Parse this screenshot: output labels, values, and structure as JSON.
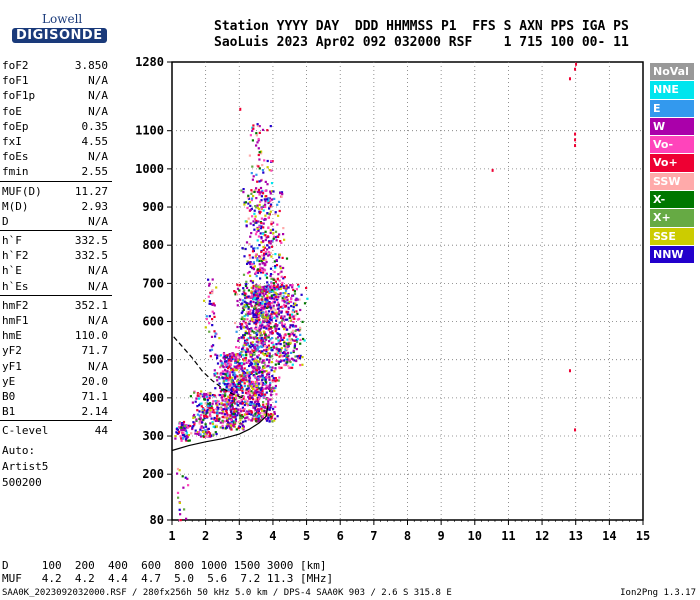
{
  "logo": {
    "line1": "Lowell",
    "line2": "DIGISONDE"
  },
  "header": {
    "line1": "Station YYYY DAY  DDD HHMMSS P1  FFS S AXN PPS IGA PS",
    "line2": "SaoLuis 2023 Apr02 092 032000 RSF    1 715 100 00- 11"
  },
  "params_groups": [
    [
      {
        "label": "foF2",
        "value": "3.850"
      },
      {
        "label": "foF1",
        "value": "N/A"
      },
      {
        "label": "foF1p",
        "value": "N/A"
      },
      {
        "label": "foE",
        "value": "N/A"
      },
      {
        "label": "foEp",
        "value": "0.35"
      },
      {
        "label": "fxI",
        "value": "4.55"
      },
      {
        "label": "foEs",
        "value": "N/A"
      },
      {
        "label": "fmin",
        "value": "2.55"
      }
    ],
    [
      {
        "label": "MUF(D)",
        "value": "11.27"
      },
      {
        "label": "M(D)",
        "value": "2.93"
      },
      {
        "label": "D",
        "value": "N/A"
      }
    ],
    [
      {
        "label": "h`F",
        "value": "332.5"
      },
      {
        "label": "h`F2",
        "value": "332.5"
      },
      {
        "label": "h`E",
        "value": "N/A"
      },
      {
        "label": "h`Es",
        "value": "N/A"
      }
    ],
    [
      {
        "label": "hmF2",
        "value": "352.1"
      },
      {
        "label": "hmF1",
        "value": "N/A"
      },
      {
        "label": "hmE",
        "value": "110.0"
      },
      {
        "label": "yF2",
        "value": "71.7"
      },
      {
        "label": "yF1",
        "value": "N/A"
      },
      {
        "label": "yE",
        "value": "20.0"
      },
      {
        "label": "B0",
        "value": "71.1"
      },
      {
        "label": "B1",
        "value": "2.14"
      }
    ],
    [
      {
        "label": "C-level",
        "value": "44"
      }
    ]
  ],
  "auto": {
    "line1": "Auto:",
    "line2": "Artist5",
    "line3": "500200"
  },
  "legend": [
    {
      "label": "NoVal",
      "color": "#999999"
    },
    {
      "label": "NNE",
      "color": "#00e5ee"
    },
    {
      "label": "E",
      "color": "#3399ee"
    },
    {
      "label": "W",
      "color": "#aa00aa"
    },
    {
      "label": "Vo-",
      "color": "#ff44bb"
    },
    {
      "label": "Vo+",
      "color": "#ee0033"
    },
    {
      "label": "SSW",
      "color": "#ffaaaa"
    },
    {
      "label": "X-",
      "color": "#007700"
    },
    {
      "label": "X+",
      "color": "#66aa44"
    },
    {
      "label": "SSE",
      "color": "#cccc00"
    },
    {
      "label": "NNW",
      "color": "#2200cc"
    }
  ],
  "muf_table": {
    "row1": "D     100  200  400  600  800 1000 1500 3000 [km]",
    "row2": "MUF   4.2  4.2  4.4  4.7  5.0  5.6  7.2 11.3 [MHz]"
  },
  "footer": {
    "left": "SAA0K_2023092032000.RSF / 280fx256h 50 kHz 5.0 km / DPS-4 SAA0K 903 / 2.6 S 315.8 E",
    "right": "Ion2Png 1.3.17"
  },
  "chart_data": {
    "type": "scatter",
    "xlabel": "",
    "ylabel": "",
    "x_ticks": [
      1,
      2,
      3,
      4,
      5,
      6,
      7,
      8,
      9,
      10,
      11,
      12,
      13,
      14,
      15
    ],
    "y_ticks": [
      80,
      200,
      300,
      400,
      500,
      600,
      700,
      800,
      900,
      1000,
      1100,
      1280
    ],
    "xlim": [
      1,
      15
    ],
    "ylim": [
      80,
      1280
    ],
    "grid": true,
    "profile_solid": {
      "x": [
        1.0,
        1.5,
        2.0,
        2.5,
        3.0,
        3.3,
        3.6,
        3.8,
        3.85
      ],
      "y": [
        262,
        275,
        285,
        293,
        305,
        318,
        335,
        352,
        380
      ]
    },
    "profile_dashed": {
      "x": [
        1.05,
        1.3,
        1.6,
        1.9,
        2.2,
        2.5,
        2.8,
        3.1
      ],
      "y": [
        560,
        535,
        505,
        470,
        445,
        425,
        410,
        400
      ]
    },
    "clusters": [
      {
        "x": [
          1.0,
          1.6
        ],
        "y": [
          290,
          340
        ],
        "count": 70
      },
      {
        "x": [
          1.5,
          2.5
        ],
        "y": [
          300,
          420
        ],
        "count": 220
      },
      {
        "x": [
          2.2,
          3.2
        ],
        "y": [
          320,
          520
        ],
        "count": 500
      },
      {
        "x": [
          2.8,
          4.2
        ],
        "y": [
          340,
          700
        ],
        "count": 1100
      },
      {
        "x": [
          3.0,
          4.4
        ],
        "y": [
          600,
          950
        ],
        "count": 450
      },
      {
        "x": [
          3.2,
          4.0
        ],
        "y": [
          900,
          1120
        ],
        "count": 70
      },
      {
        "x": [
          3.8,
          5.0
        ],
        "y": [
          480,
          700
        ],
        "count": 320
      },
      {
        "x": [
          1.9,
          2.4
        ],
        "y": [
          500,
          720
        ],
        "count": 40
      },
      {
        "x": [
          1.0,
          1.5
        ],
        "y": [
          80,
          220
        ],
        "count": 18
      }
    ],
    "outliers": [
      {
        "x": 12.8,
        "y": 1240
      },
      {
        "x": 12.95,
        "y": 1265
      },
      {
        "x": 12.98,
        "y": 1278
      },
      {
        "x": 12.95,
        "y": 1095
      },
      {
        "x": 12.95,
        "y": 1080
      },
      {
        "x": 12.95,
        "y": 1065
      },
      {
        "x": 12.8,
        "y": 475
      },
      {
        "x": 12.95,
        "y": 320
      },
      {
        "x": 10.5,
        "y": 1000
      },
      {
        "x": 3.0,
        "y": 1160
      }
    ]
  }
}
